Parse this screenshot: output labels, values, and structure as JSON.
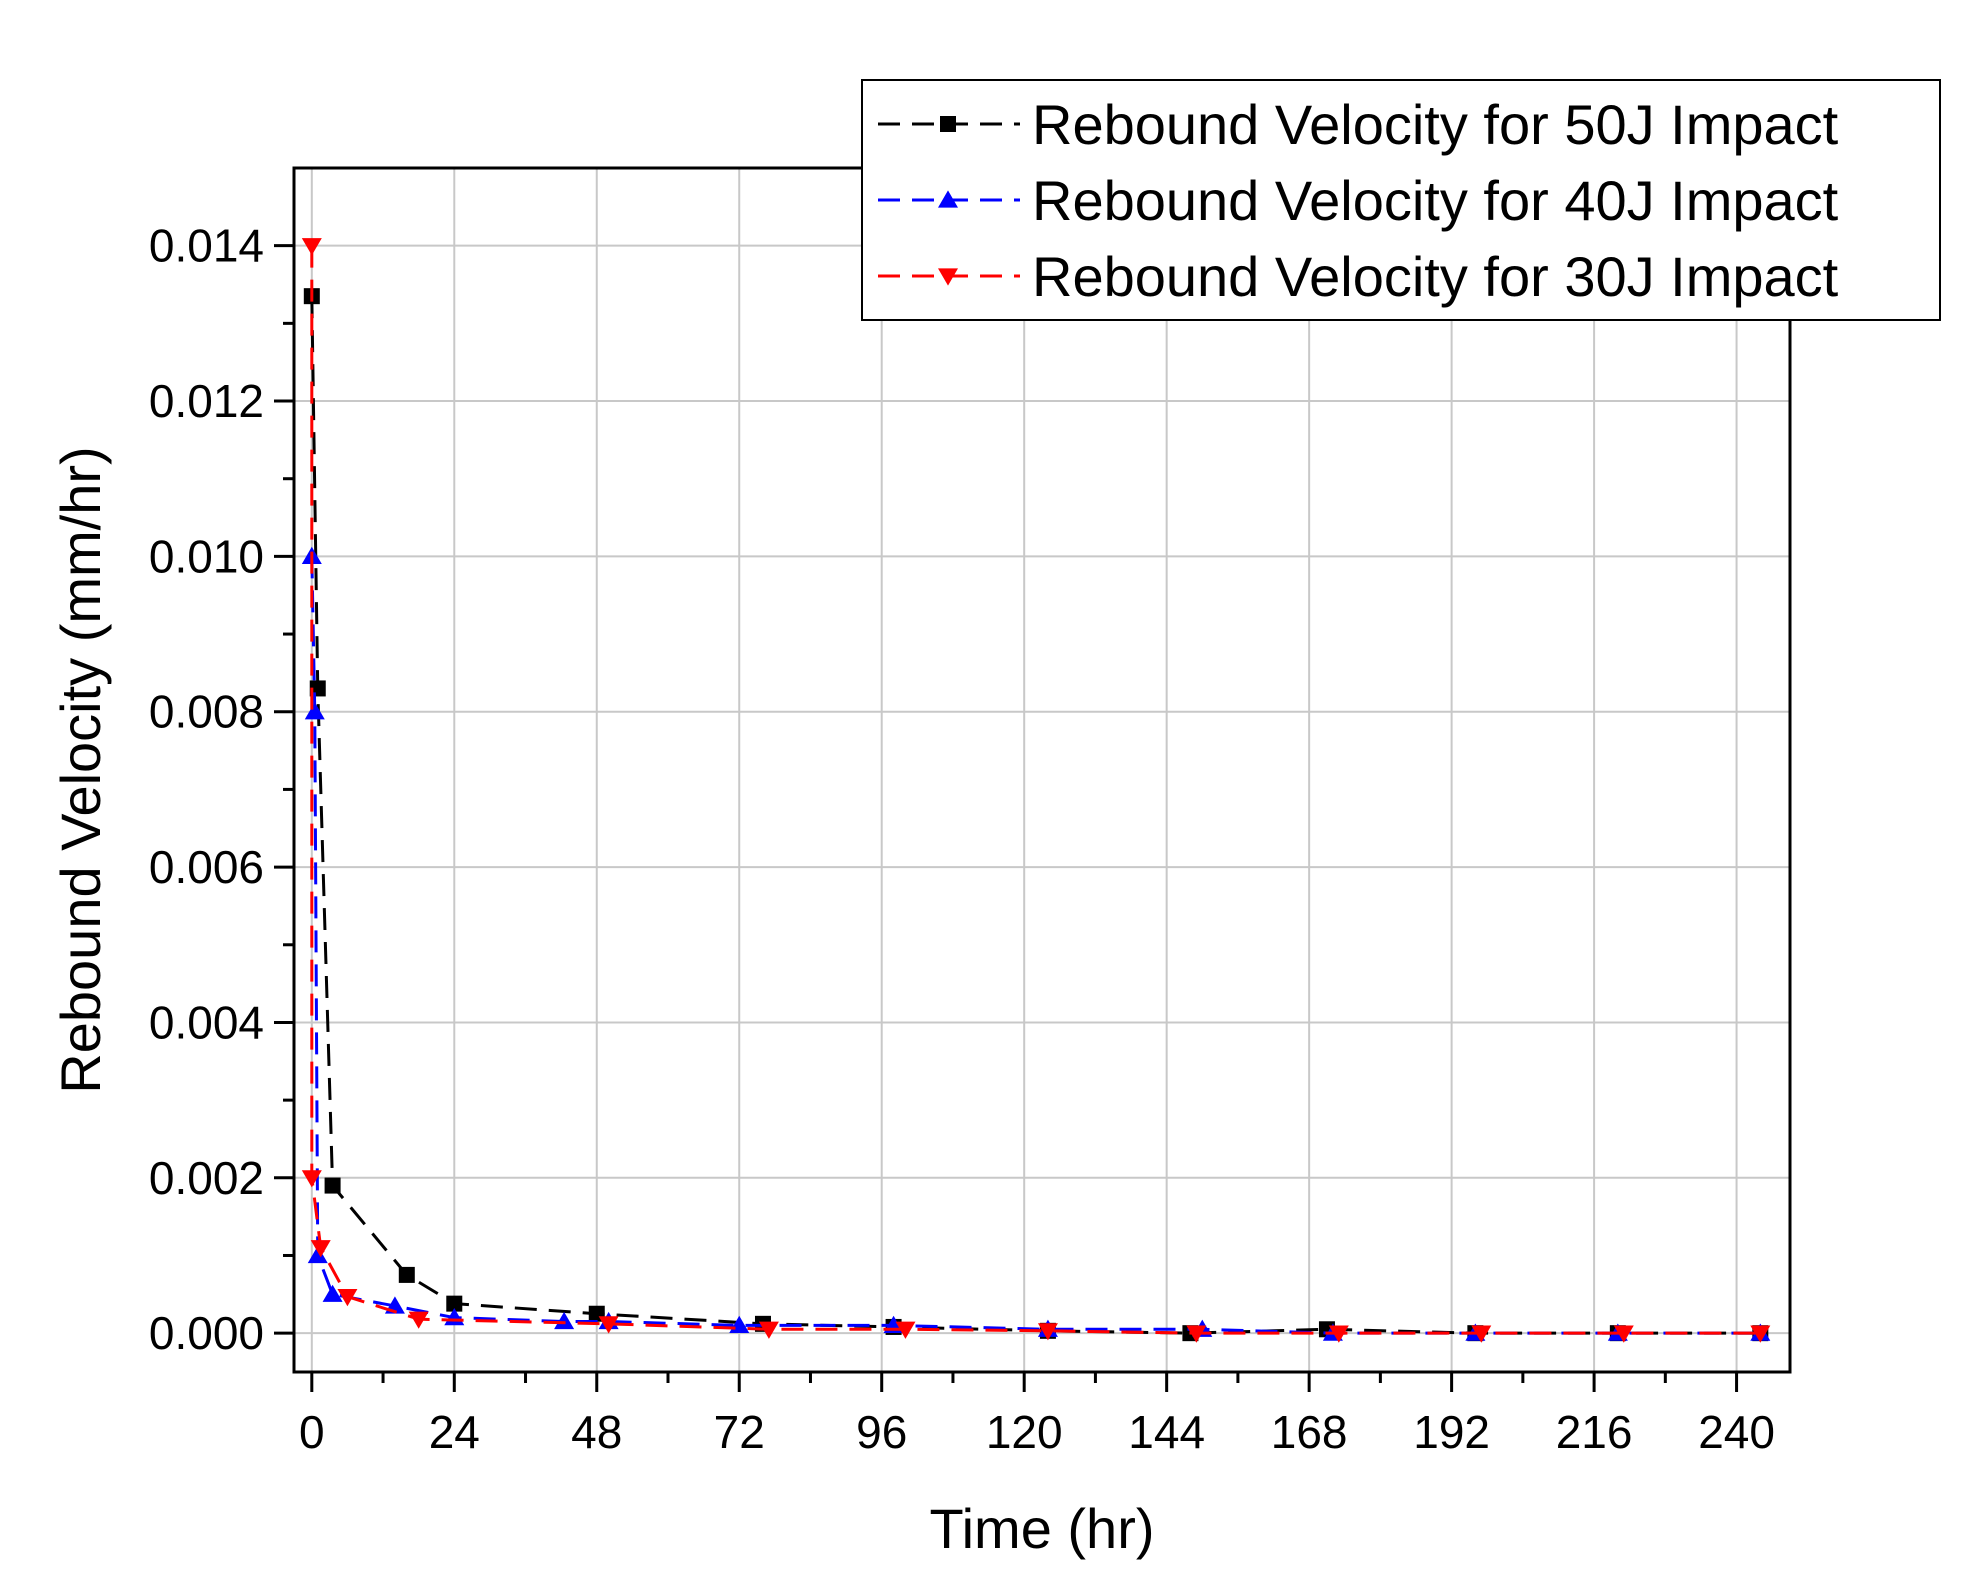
{
  "chart_data": {
    "type": "line",
    "title": "",
    "xlabel": "Time (hr)",
    "ylabel": "Rebound Velocity (mm/hr)",
    "xlim": [
      -3,
      249
    ],
    "ylim": [
      -0.0005,
      0.015
    ],
    "xticks": [
      0,
      24,
      48,
      72,
      96,
      120,
      144,
      168,
      192,
      216,
      240
    ],
    "xtick_labels": [
      "0",
      "24",
      "48",
      "72",
      "96",
      "120",
      "144",
      "168",
      "192",
      "216",
      "240"
    ],
    "yticks": [
      0.0,
      0.002,
      0.004,
      0.006,
      0.008,
      0.01,
      0.012,
      0.014
    ],
    "ytick_labels": [
      "0.000",
      "0.002",
      "0.004",
      "0.006",
      "0.008",
      "0.010",
      "0.012",
      "0.014"
    ],
    "grid": true,
    "legend_position": "top-right",
    "series": [
      {
        "name": "Rebound Velocity for 50J Impact",
        "color": "#000000",
        "marker": "square",
        "x": [
          0,
          1,
          3.5,
          16,
          24,
          48,
          76,
          98,
          124,
          148,
          171,
          196,
          220,
          244
        ],
        "y": [
          0.01335,
          0.0083,
          0.0019,
          0.00075,
          0.00038,
          0.00025,
          0.00012,
          8e-05,
          3e-05,
          0.0,
          5e-05,
          0.0,
          0.0,
          0.0
        ]
      },
      {
        "name": "Rebound Velocity for 40J Impact",
        "color": "#0000ff",
        "marker": "triangle-up",
        "x": [
          0,
          0.5,
          1,
          3.5,
          14,
          24,
          42.5,
          50,
          72,
          98,
          124,
          150,
          172,
          196,
          220,
          244
        ],
        "y": [
          0.01,
          0.008,
          0.001,
          0.0005,
          0.00035,
          0.0002,
          0.00015,
          0.00015,
          0.0001,
          0.0001,
          5e-05,
          5e-05,
          0.0,
          0.0,
          0.0,
          0.0
        ]
      },
      {
        "name": "Rebound Velocity for 30J Impact",
        "color": "#ff0000",
        "marker": "triangle-down",
        "x": [
          0,
          0,
          1.5,
          6,
          18,
          50,
          77,
          100,
          124,
          149,
          173,
          197,
          221,
          244
        ],
        "y": [
          0.014,
          0.002,
          0.0011,
          0.00047,
          0.00018,
          0.00012,
          5e-05,
          5e-05,
          3e-05,
          0.0,
          0.0,
          0.0,
          0.0,
          0.0
        ]
      }
    ]
  }
}
